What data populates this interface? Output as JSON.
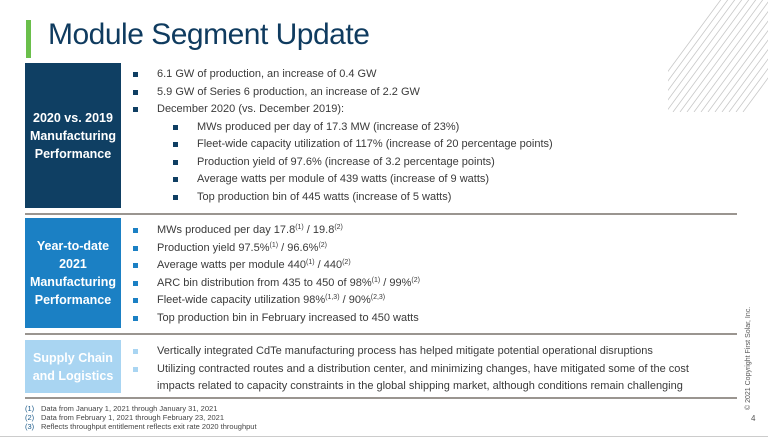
{
  "title": "Module Segment Update",
  "sections": [
    {
      "label": [
        "2020 vs. 2019",
        "Manufacturing",
        "Performance"
      ],
      "color": "#0f3f63",
      "bullets": [
        {
          "text": "6.1 GW of production, an increase of 0.4 GW",
          "level": 1
        },
        {
          "text": "5.9 GW of Series 6 production, an increase of 2.2 GW",
          "level": 1
        },
        {
          "text": "December 2020 (vs. December 2019):",
          "level": 1
        },
        {
          "text": "MWs produced per day of 17.3 MW (increase of 23%)",
          "level": 2
        },
        {
          "text": "Fleet-wide capacity utilization of 117% (increase of 20 percentage points)",
          "level": 2
        },
        {
          "text": "Production yield of 97.6% (increase of 3.2 percentage points)",
          "level": 2
        },
        {
          "text": "Average watts per module of 439 watts (increase of 9 watts)",
          "level": 2
        },
        {
          "text": "Top production bin of 445 watts (increase of 5 watts)",
          "level": 2
        }
      ]
    },
    {
      "label": [
        "Year-to-date",
        "2021",
        "Manufacturing",
        "Performance"
      ],
      "color": "#1b80c4",
      "bullets": [
        {
          "a": "MWs produced per day 17.8",
          "s1": "(1)",
          "b": " / 19.8",
          "s2": "(2)"
        },
        {
          "a": "Production yield 97.5%",
          "s1": "(1)",
          "b": " / 96.6%",
          "s2": "(2)"
        },
        {
          "a": "Average watts per module 440",
          "s1": "(1)",
          "b": " / 440",
          "s2": "(2)"
        },
        {
          "a": "ARC bin distribution from 435 to 450 of 98%",
          "s1": "(1)",
          "b": " / 99%",
          "s2": "(2)"
        },
        {
          "a": "Fleet-wide capacity utilization 98%",
          "s1": "(1,3)",
          "b": " / 90%",
          "s2": "(2,3)"
        },
        {
          "a": "Top production bin in February increased to 450 watts",
          "s1": "",
          "b": "",
          "s2": ""
        }
      ]
    },
    {
      "label": [
        "Supply Chain",
        "and Logistics"
      ],
      "color": "#a9d5f2",
      "bullets": [
        {
          "text": "Vertically integrated CdTe manufacturing process has helped mitigate potential operational disruptions"
        },
        {
          "text": "Utilizing contracted routes and a distribution center, and minimizing changes, have mitigated some of the cost impacts related to capacity constraints in the global shipping market, although conditions remain challenging"
        }
      ]
    }
  ],
  "footnotes": [
    {
      "n": "(1)",
      "text": "Data from January 1, 2021 through January 31, 2021"
    },
    {
      "n": "(2)",
      "text": "Data from February 1, 2021 through February 23, 2021"
    },
    {
      "n": "(3)",
      "text": "Reflects throughput entitlement reflects exit rate 2020 throughput"
    }
  ],
  "copyright": "© 2021 Copyright First Solar, Inc.",
  "page_number": "4",
  "accent_color": "#6abf4b"
}
